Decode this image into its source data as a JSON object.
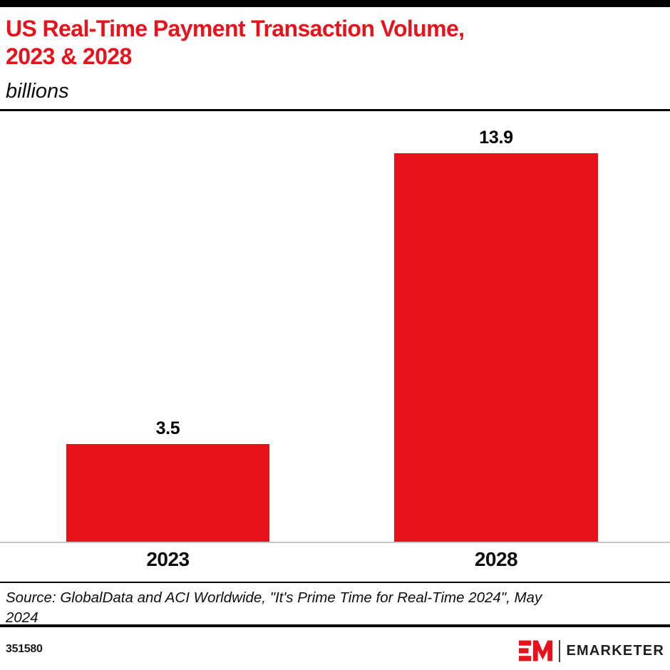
{
  "header": {
    "title_line1": "US Real-Time Payment Transaction Volume,",
    "title_line2": "2023 & 2028",
    "subtitle": "billions",
    "accent_color": "#e8121c"
  },
  "chart_data": {
    "type": "bar",
    "title": "US Real-Time Payment Transaction Volume, 2023 & 2028",
    "subtitle": "billions",
    "categories": [
      "2023",
      "2028"
    ],
    "values": [
      3.5,
      13.9
    ],
    "unit": "billions",
    "bar_color": "#e8121c",
    "axis_line_color": "#c6c6c6",
    "ylim": [
      0,
      15.4
    ],
    "grid": false,
    "legend": "none",
    "value_labels": true
  },
  "source": {
    "text": "Source: GlobalData and ACI Worldwide, \"It's Prime Time for Real-Time 2024\", May 2024"
  },
  "footer": {
    "chart_id": "351580",
    "brand": "EMARKETER",
    "brand_color": "#e8121c"
  }
}
